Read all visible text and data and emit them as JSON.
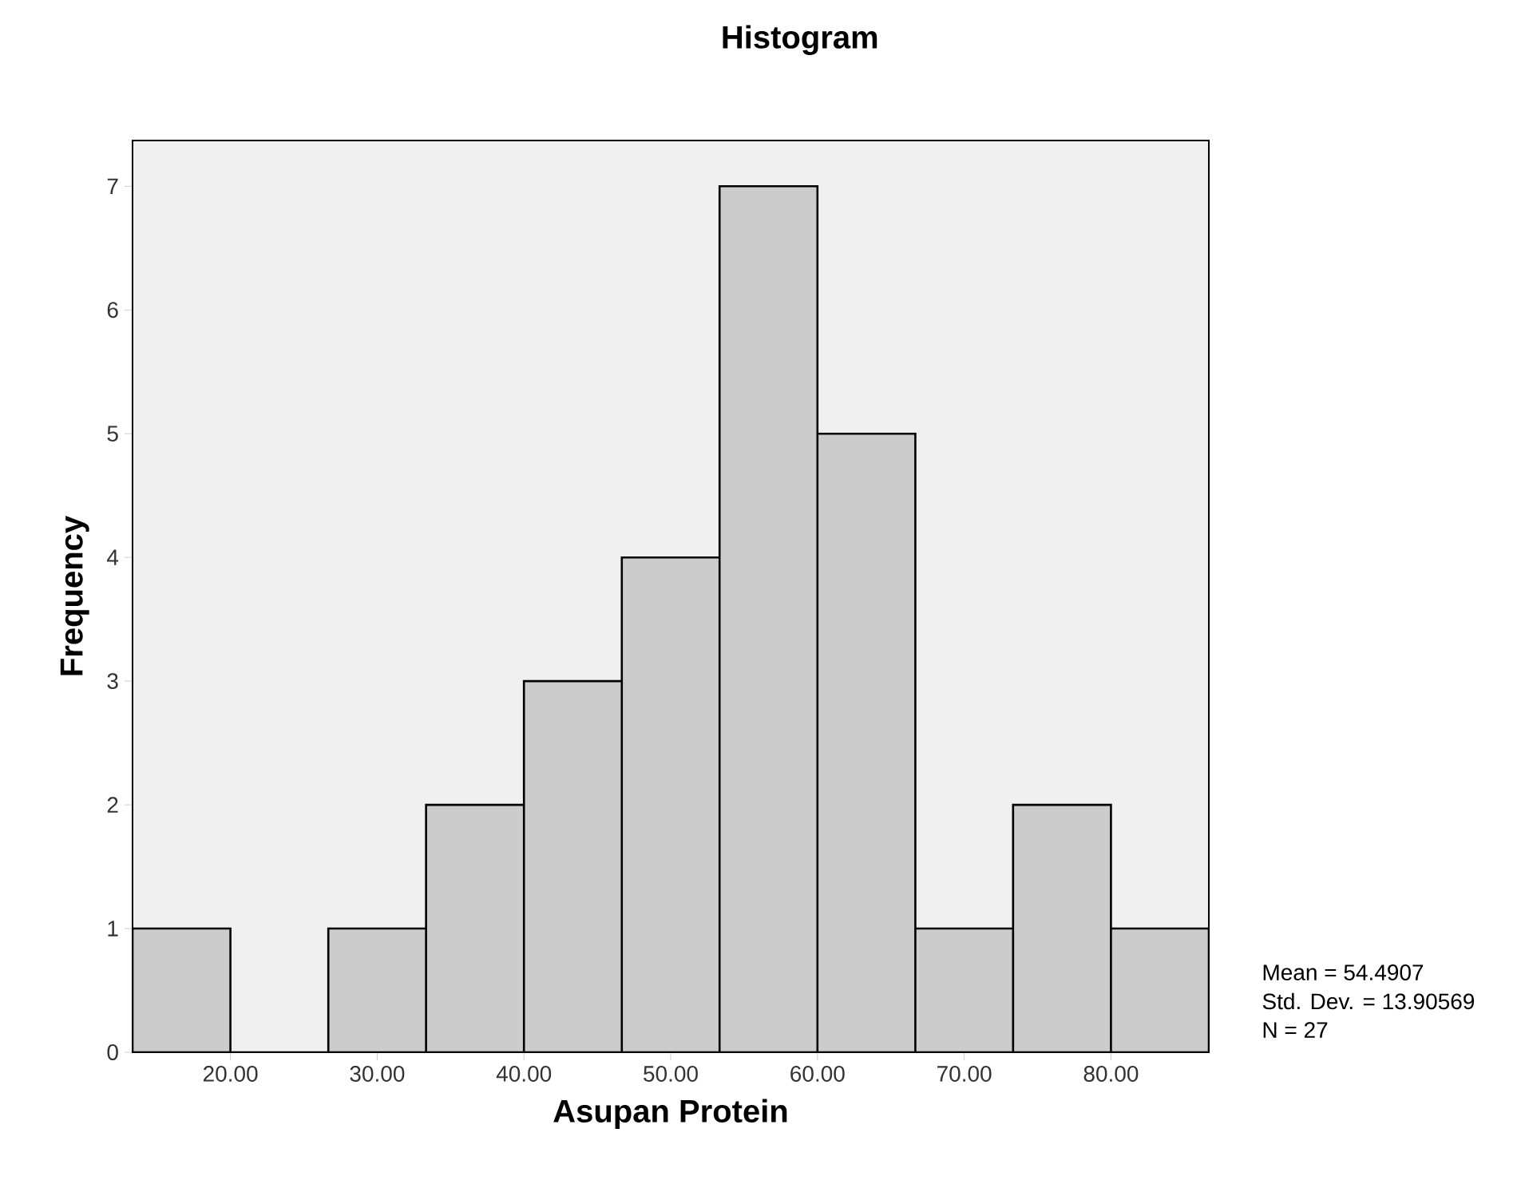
{
  "chart_data": {
    "type": "histogram",
    "title": "Histogram",
    "xlabel": "Asupan Protein",
    "ylabel": "Frequency",
    "bins": [
      13.33,
      20,
      26.67,
      33.33,
      40,
      46.67,
      53.33,
      60,
      66.67,
      73.33,
      80,
      86.67
    ],
    "values": [
      1,
      0,
      1,
      2,
      3,
      4,
      7,
      5,
      1,
      2,
      1
    ],
    "color": "#cccccc",
    "xlim": [
      13.33,
      86.67
    ],
    "ylim": [
      0,
      7.37
    ],
    "xticks": [
      {
        "value": 20,
        "label": "20.00"
      },
      {
        "value": 30,
        "label": "30.00"
      },
      {
        "value": 40,
        "label": "40.00"
      },
      {
        "value": 50,
        "label": "50.00"
      },
      {
        "value": 60,
        "label": "60.00"
      },
      {
        "value": 70,
        "label": "70.00"
      },
      {
        "value": 80,
        "label": "80.00"
      }
    ],
    "yticks": [
      0,
      1,
      2,
      3,
      4,
      5,
      6,
      7
    ],
    "annotations": [
      "Mean = 54.4907",
      "Std. Dev. = 13.90569",
      "N = 27"
    ]
  }
}
